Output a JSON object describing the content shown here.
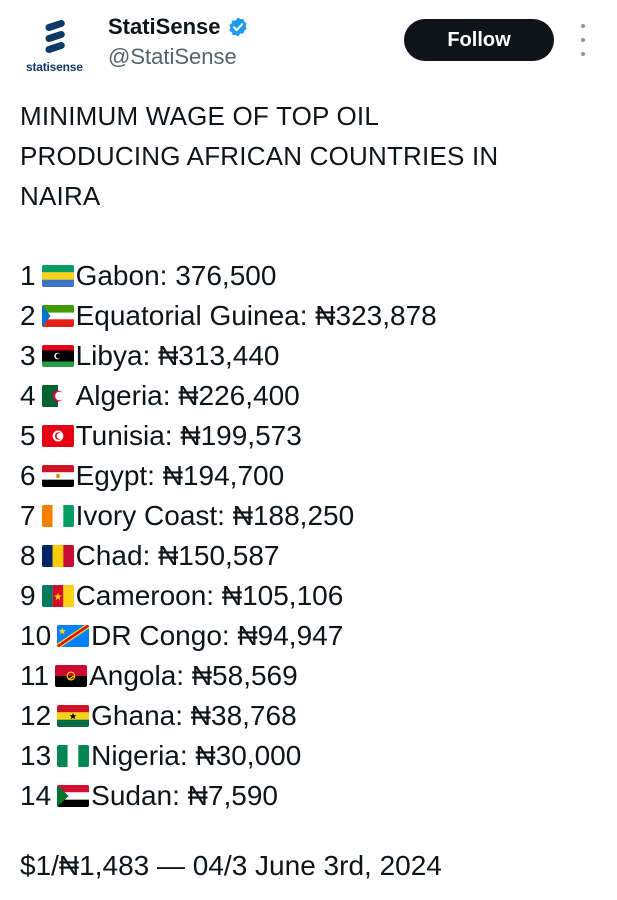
{
  "account": {
    "display_name": "StatiSense",
    "handle": "@StatiSense",
    "logo_text": "statisense",
    "verified_color": "#1d9bf0"
  },
  "follow_label": "Follow",
  "post": {
    "title_line1": "MINIMUM WAGE OF TOP OIL",
    "title_line2": "PRODUCING AFRICAN COUNTRIES IN",
    "title_line3": "NAIRA",
    "items": [
      {
        "rank": "1",
        "flag": "gabon-flag-icon",
        "text": "Gabon: 376,500"
      },
      {
        "rank": "2",
        "flag": "equatorial-guinea-flag-icon",
        "text": "Equatorial Guinea: ₦323,878"
      },
      {
        "rank": "3",
        "flag": "libya-flag-icon",
        "text": "Libya: ₦313,440"
      },
      {
        "rank": "4",
        "flag": "algeria-flag-icon",
        "text": "Algeria: ₦226,400"
      },
      {
        "rank": "5",
        "flag": "tunisia-flag-icon",
        "text": "Tunisia: ₦199,573"
      },
      {
        "rank": "6",
        "flag": "egypt-flag-icon",
        "text": "Egypt: ₦194,700"
      },
      {
        "rank": "7",
        "flag": "ivory-coast-flag-icon",
        "text": "Ivory Coast: ₦188,250"
      },
      {
        "rank": "8",
        "flag": "chad-flag-icon",
        "text": "Chad: ₦150,587"
      },
      {
        "rank": "9",
        "flag": "cameroon-flag-icon",
        "text": "Cameroon: ₦105,106"
      },
      {
        "rank": "10",
        "flag": "dr-congo-flag-icon",
        "text": "DR Congo: ₦94,947"
      },
      {
        "rank": "11",
        "flag": "angola-flag-icon",
        "text": "Angola: ₦58,569"
      },
      {
        "rank": "12",
        "flag": "ghana-flag-icon",
        "text": "Ghana: ₦38,768"
      },
      {
        "rank": "13",
        "flag": "nigeria-flag-icon",
        "text": "Nigeria: ₦30,000"
      },
      {
        "rank": "14",
        "flag": "sudan-flag-icon",
        "text": "Sudan: ₦7,590"
      }
    ],
    "footer": "$1/₦1,483 — 04/3 June 3rd, 2024"
  }
}
